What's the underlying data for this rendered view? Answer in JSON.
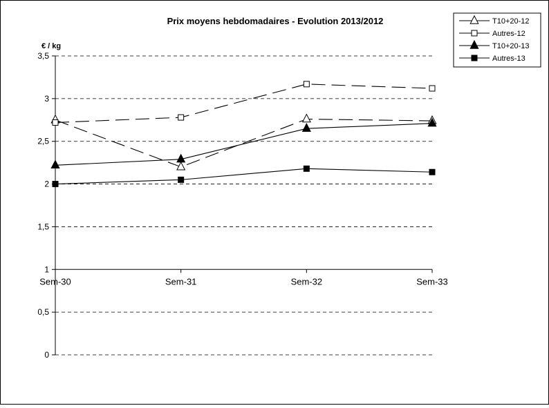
{
  "chart_data": {
    "type": "line",
    "title": "Prix moyens hebdomadaires - Evolution  2013/2012",
    "ylabel": "€ / kg",
    "xlabel": "",
    "categories": [
      "Sem-30",
      "Sem-31",
      "Sem-32",
      "Sem-33"
    ],
    "ylim": [
      0,
      3.5
    ],
    "yticks": [
      0,
      0.5,
      1,
      1.5,
      2,
      2.5,
      3,
      3.5
    ],
    "ytick_labels": [
      "0",
      "0,5",
      "1",
      "1,5",
      "2",
      "2,5",
      "3",
      "3,5"
    ],
    "x_axis_crosses_at": 1,
    "grid": "dashed horizontal",
    "legend_position": "top-right",
    "series": [
      {
        "name": "T10+20-12",
        "values": [
          2.75,
          2.2,
          2.76,
          2.74
        ],
        "marker": "triangle-open",
        "line": "long-dash",
        "color": "#000000"
      },
      {
        "name": "Autres-12",
        "values": [
          2.72,
          2.78,
          3.17,
          3.12
        ],
        "marker": "square-open",
        "line": "long-dash",
        "color": "#000000"
      },
      {
        "name": "T10+20-13",
        "values": [
          2.22,
          2.29,
          2.65,
          2.71
        ],
        "marker": "triangle-filled",
        "line": "solid",
        "color": "#000000"
      },
      {
        "name": "Autres-13",
        "values": [
          2.0,
          2.05,
          2.18,
          2.14
        ],
        "marker": "square-filled",
        "line": "solid",
        "color": "#000000"
      }
    ]
  }
}
